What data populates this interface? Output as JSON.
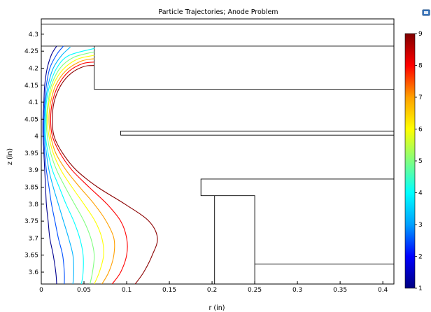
{
  "chart_data": {
    "type": "line",
    "title": "Particle Trajectories; Anode Problem",
    "xlabel": "r (in)",
    "ylabel": "z (in)",
    "xlim": [
      0,
      0.413
    ],
    "ylim": [
      3.565,
      4.345
    ],
    "x_ticks": [
      0,
      0.05,
      0.1,
      0.15,
      0.2,
      0.25,
      0.3,
      0.35,
      0.4
    ],
    "x_tick_labels": [
      "0",
      "0.05",
      "0.1",
      "0.15",
      "0.2",
      "0.25",
      "0.3",
      "0.35",
      "0.4"
    ],
    "y_ticks": [
      3.6,
      3.65,
      3.7,
      3.75,
      3.8,
      3.85,
      3.9,
      3.95,
      4.0,
      4.05,
      4.1,
      4.15,
      4.2,
      4.25,
      4.3
    ],
    "y_tick_labels": [
      "3.6",
      "3.65",
      "3.7",
      "3.75",
      "3.8",
      "3.85",
      "3.9",
      "3.95",
      "4",
      "4.05",
      "4.1",
      "4.15",
      "4.2",
      "4.25",
      "4.3"
    ],
    "colorbar": {
      "range": [
        1,
        9
      ],
      "tick_labels": [
        "1",
        "2",
        "3",
        "4",
        "5",
        "6",
        "7",
        "8",
        "9"
      ],
      "colormap": [
        "#000080",
        "#0000ff",
        "#00a0ff",
        "#00ffff",
        "#80ff80",
        "#ffff00",
        "#ffa000",
        "#ff0000",
        "#800000"
      ]
    },
    "geometry": [
      {
        "name": "top-line",
        "points": [
          [
            0,
            4.33
          ],
          [
            0.413,
            4.33
          ]
        ]
      },
      {
        "name": "electrode-upper",
        "points": [
          [
            0,
            4.265
          ],
          [
            0.413,
            4.265
          ]
        ]
      },
      {
        "name": "electrode-upper-lower",
        "points": [
          [
            0.062,
            4.265
          ],
          [
            0.062,
            4.138
          ],
          [
            0.413,
            4.138
          ]
        ]
      },
      {
        "name": "plate-middle",
        "points": [
          [
            0.413,
            4.015
          ],
          [
            0.093,
            4.015
          ],
          [
            0.093,
            4.003
          ],
          [
            0.413,
            4.003
          ]
        ]
      },
      {
        "name": "step-upper",
        "points": [
          [
            0.413,
            3.874
          ],
          [
            0.187,
            3.874
          ],
          [
            0.187,
            3.825
          ],
          [
            0.25,
            3.825
          ],
          [
            0.25,
            3.565
          ]
        ]
      },
      {
        "name": "step-lower",
        "points": [
          [
            0.203,
            3.565
          ],
          [
            0.203,
            3.825
          ]
        ]
      },
      {
        "name": "step-bottom",
        "points": [
          [
            0.25,
            3.624
          ],
          [
            0.413,
            3.624
          ]
        ]
      }
    ],
    "series": [
      {
        "value": 1,
        "color": "#00008f",
        "points": [
          [
            0.018,
            3.565
          ],
          [
            0.017,
            3.6
          ],
          [
            0.014,
            3.65
          ],
          [
            0.01,
            3.7
          ],
          [
            0.008,
            3.75
          ],
          [
            0.006,
            3.8
          ],
          [
            0.005,
            3.85
          ],
          [
            0.004,
            3.9
          ],
          [
            0.003,
            3.95
          ],
          [
            0.002,
            4.0
          ],
          [
            0.002,
            4.05
          ],
          [
            0.003,
            4.1
          ],
          [
            0.004,
            4.15
          ],
          [
            0.007,
            4.2
          ],
          [
            0.012,
            4.24
          ],
          [
            0.018,
            4.265
          ]
        ]
      },
      {
        "value": 2,
        "color": "#0050ff",
        "points": [
          [
            0.027,
            3.565
          ],
          [
            0.027,
            3.6
          ],
          [
            0.025,
            3.65
          ],
          [
            0.02,
            3.7
          ],
          [
            0.016,
            3.75
          ],
          [
            0.012,
            3.8
          ],
          [
            0.009,
            3.85
          ],
          [
            0.006,
            3.9
          ],
          [
            0.004,
            3.95
          ],
          [
            0.003,
            4.0
          ],
          [
            0.003,
            4.05
          ],
          [
            0.004,
            4.1
          ],
          [
            0.006,
            4.15
          ],
          [
            0.01,
            4.2
          ],
          [
            0.018,
            4.24
          ],
          [
            0.026,
            4.265
          ]
        ]
      },
      {
        "value": 3,
        "color": "#00b4ff",
        "points": [
          [
            0.037,
            3.565
          ],
          [
            0.038,
            3.6
          ],
          [
            0.037,
            3.65
          ],
          [
            0.032,
            3.7
          ],
          [
            0.026,
            3.75
          ],
          [
            0.02,
            3.8
          ],
          [
            0.014,
            3.85
          ],
          [
            0.009,
            3.9
          ],
          [
            0.006,
            3.95
          ],
          [
            0.004,
            4.0
          ],
          [
            0.004,
            4.05
          ],
          [
            0.005,
            4.1
          ],
          [
            0.008,
            4.15
          ],
          [
            0.014,
            4.2
          ],
          [
            0.024,
            4.238
          ],
          [
            0.034,
            4.262
          ]
        ]
      },
      {
        "value": 4,
        "color": "#00ffff",
        "points": [
          [
            0.047,
            3.565
          ],
          [
            0.049,
            3.6
          ],
          [
            0.049,
            3.65
          ],
          [
            0.045,
            3.7
          ],
          [
            0.038,
            3.75
          ],
          [
            0.029,
            3.8
          ],
          [
            0.021,
            3.85
          ],
          [
            0.013,
            3.9
          ],
          [
            0.008,
            3.95
          ],
          [
            0.005,
            4.0
          ],
          [
            0.005,
            4.05
          ],
          [
            0.006,
            4.1
          ],
          [
            0.01,
            4.15
          ],
          [
            0.018,
            4.2
          ],
          [
            0.032,
            4.237
          ],
          [
            0.062,
            4.258
          ]
        ]
      },
      {
        "value": 5,
        "color": "#80ff80",
        "points": [
          [
            0.057,
            3.565
          ],
          [
            0.06,
            3.6
          ],
          [
            0.062,
            3.65
          ],
          [
            0.058,
            3.7
          ],
          [
            0.05,
            3.75
          ],
          [
            0.039,
            3.8
          ],
          [
            0.028,
            3.85
          ],
          [
            0.018,
            3.9
          ],
          [
            0.011,
            3.95
          ],
          [
            0.007,
            4.0
          ],
          [
            0.006,
            4.05
          ],
          [
            0.008,
            4.1
          ],
          [
            0.012,
            4.15
          ],
          [
            0.022,
            4.2
          ],
          [
            0.038,
            4.232
          ],
          [
            0.062,
            4.248
          ]
        ]
      },
      {
        "value": 6,
        "color": "#ffff00",
        "points": [
          [
            0.062,
            3.565
          ],
          [
            0.068,
            3.6
          ],
          [
            0.073,
            3.65
          ],
          [
            0.071,
            3.7
          ],
          [
            0.063,
            3.75
          ],
          [
            0.05,
            3.8
          ],
          [
            0.036,
            3.85
          ],
          [
            0.023,
            3.9
          ],
          [
            0.014,
            3.95
          ],
          [
            0.009,
            4.0
          ],
          [
            0.007,
            4.05
          ],
          [
            0.009,
            4.1
          ],
          [
            0.014,
            4.15
          ],
          [
            0.025,
            4.195
          ],
          [
            0.042,
            4.226
          ],
          [
            0.062,
            4.238
          ]
        ]
      },
      {
        "value": 7,
        "color": "#ffa000",
        "points": [
          [
            0.071,
            3.565
          ],
          [
            0.079,
            3.6
          ],
          [
            0.085,
            3.65
          ],
          [
            0.085,
            3.7
          ],
          [
            0.076,
            3.75
          ],
          [
            0.062,
            3.8
          ],
          [
            0.045,
            3.85
          ],
          [
            0.029,
            3.9
          ],
          [
            0.017,
            3.95
          ],
          [
            0.011,
            4.0
          ],
          [
            0.009,
            4.05
          ],
          [
            0.011,
            4.1
          ],
          [
            0.017,
            4.15
          ],
          [
            0.029,
            4.193
          ],
          [
            0.046,
            4.22
          ],
          [
            0.062,
            4.228
          ]
        ]
      },
      {
        "value": 8,
        "color": "#ff0000",
        "points": [
          [
            0.083,
            3.565
          ],
          [
            0.093,
            3.6
          ],
          [
            0.1,
            3.65
          ],
          [
            0.1,
            3.7
          ],
          [
            0.093,
            3.75
          ],
          [
            0.077,
            3.8
          ],
          [
            0.056,
            3.85
          ],
          [
            0.036,
            3.9
          ],
          [
            0.022,
            3.95
          ],
          [
            0.013,
            4.0
          ],
          [
            0.011,
            4.05
          ],
          [
            0.013,
            4.1
          ],
          [
            0.02,
            4.15
          ],
          [
            0.032,
            4.19
          ],
          [
            0.048,
            4.213
          ],
          [
            0.062,
            4.218
          ]
        ]
      },
      {
        "value": 9,
        "color": "#8b0000",
        "points": [
          [
            0.11,
            3.565
          ],
          [
            0.12,
            3.6
          ],
          [
            0.13,
            3.65
          ],
          [
            0.136,
            3.7
          ],
          [
            0.126,
            3.75
          ],
          [
            0.098,
            3.8
          ],
          [
            0.066,
            3.85
          ],
          [
            0.041,
            3.9
          ],
          [
            0.025,
            3.95
          ],
          [
            0.015,
            4.0
          ],
          [
            0.013,
            4.05
          ],
          [
            0.015,
            4.1
          ],
          [
            0.023,
            4.15
          ],
          [
            0.035,
            4.185
          ],
          [
            0.05,
            4.205
          ],
          [
            0.062,
            4.208
          ]
        ]
      }
    ]
  }
}
